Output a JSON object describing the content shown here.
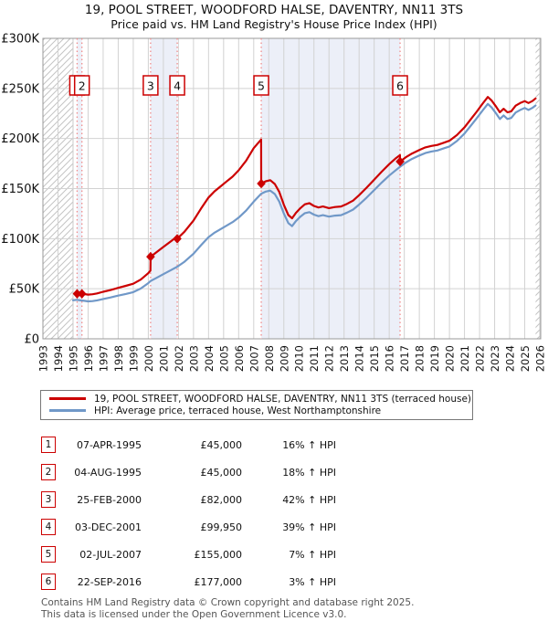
{
  "header": {
    "title": "19, POOL STREET, WOODFORD HALSE, DAVENTRY, NN11 3TS",
    "subtitle": "Price paid vs. HM Land Registry's House Price Index (HPI)"
  },
  "chart_data": {
    "type": "line",
    "x_axis": {
      "min": 1993,
      "max": 2026.06,
      "ticks": [
        1993,
        1994,
        1995,
        1996,
        1997,
        1998,
        1999,
        2000,
        2001,
        2002,
        2003,
        2004,
        2005,
        2006,
        2007,
        2008,
        2009,
        2010,
        2011,
        2012,
        2013,
        2014,
        2015,
        2016,
        2017,
        2018,
        2019,
        2020,
        2021,
        2022,
        2023,
        2024,
        2025,
        2026
      ]
    },
    "y_axis": {
      "min": 0,
      "max": 300,
      "ticks": [
        {
          "v": 0,
          "label": "£0"
        },
        {
          "v": 50,
          "label": "£50K"
        },
        {
          "v": 100,
          "label": "£100K"
        },
        {
          "v": 150,
          "label": "£150K"
        },
        {
          "v": 200,
          "label": "£200K"
        },
        {
          "v": 250,
          "label": "£250K"
        },
        {
          "v": 300,
          "label": "£300K"
        }
      ]
    },
    "series": [
      {
        "name": "HPI: Average price, terraced house, West Northamptonshire",
        "color": "#7098c8",
        "points": [
          [
            1995.0,
            38.5
          ],
          [
            1995.25,
            38.9
          ],
          [
            1995.5,
            38.4
          ],
          [
            1995.75,
            37.9
          ],
          [
            1996.0,
            37.4
          ],
          [
            1996.3,
            37.7
          ],
          [
            1996.6,
            38.4
          ],
          [
            1997.0,
            39.8
          ],
          [
            1997.5,
            41.3
          ],
          [
            1998.0,
            43.1
          ],
          [
            1998.5,
            44.8
          ],
          [
            1999.0,
            46.6
          ],
          [
            1999.5,
            50.2
          ],
          [
            2000.0,
            55.6
          ],
          [
            2000.15,
            57.7
          ],
          [
            2000.5,
            60.5
          ],
          [
            2001.0,
            64.6
          ],
          [
            2001.5,
            68.6
          ],
          [
            2001.92,
            71.9
          ],
          [
            2002.4,
            77.0
          ],
          [
            2003.0,
            85.0
          ],
          [
            2003.5,
            93.5
          ],
          [
            2004.0,
            101.5
          ],
          [
            2004.4,
            106.0
          ],
          [
            2004.8,
            109.5
          ],
          [
            2005.2,
            113.0
          ],
          [
            2005.6,
            116.5
          ],
          [
            2006.0,
            121.0
          ],
          [
            2006.5,
            128.0
          ],
          [
            2007.0,
            137.0
          ],
          [
            2007.5,
            144.9
          ],
          [
            2007.8,
            147.0
          ],
          [
            2008.1,
            148.0
          ],
          [
            2008.4,
            144.5
          ],
          [
            2008.7,
            137.0
          ],
          [
            2009.0,
            125.0
          ],
          [
            2009.3,
            115.5
          ],
          [
            2009.55,
            112.5
          ],
          [
            2009.8,
            117.5
          ],
          [
            2010.1,
            122.0
          ],
          [
            2010.4,
            125.5
          ],
          [
            2010.7,
            126.5
          ],
          [
            2011.0,
            124.0
          ],
          [
            2011.3,
            122.5
          ],
          [
            2011.6,
            123.5
          ],
          [
            2012.0,
            122.0
          ],
          [
            2012.4,
            123.0
          ],
          [
            2012.8,
            123.5
          ],
          [
            2013.2,
            126.0
          ],
          [
            2013.6,
            129.0
          ],
          [
            2014.0,
            134.0
          ],
          [
            2014.5,
            141.0
          ],
          [
            2015.0,
            148.5
          ],
          [
            2015.5,
            156.0
          ],
          [
            2016.0,
            163.0
          ],
          [
            2016.4,
            168.0
          ],
          [
            2016.72,
            171.8
          ],
          [
            2017.1,
            176.0
          ],
          [
            2017.5,
            179.5
          ],
          [
            2018.0,
            183.0
          ],
          [
            2018.4,
            185.5
          ],
          [
            2018.8,
            187.0
          ],
          [
            2019.2,
            188.0
          ],
          [
            2019.6,
            190.0
          ],
          [
            2020.0,
            192.0
          ],
          [
            2020.5,
            197.5
          ],
          [
            2021.0,
            205.0
          ],
          [
            2021.4,
            212.5
          ],
          [
            2021.8,
            220.0
          ],
          [
            2022.2,
            228.0
          ],
          [
            2022.55,
            234.5
          ],
          [
            2022.8,
            231.0
          ],
          [
            2023.1,
            225.0
          ],
          [
            2023.35,
            219.5
          ],
          [
            2023.6,
            223.0
          ],
          [
            2023.85,
            219.5
          ],
          [
            2024.1,
            220.5
          ],
          [
            2024.4,
            226.0
          ],
          [
            2024.7,
            228.5
          ],
          [
            2025.0,
            230.5
          ],
          [
            2025.25,
            228.5
          ],
          [
            2025.5,
            230.5
          ],
          [
            2025.72,
            233.0
          ]
        ]
      },
      {
        "name": "19, POOL STREET, WOODFORD HALSE, DAVENTRY, NN11 3TS (terraced house)",
        "color": "#cc0000",
        "points": [
          [
            1995.27,
            45
          ],
          [
            1995.45,
            45.4
          ],
          [
            1995.59,
            45
          ],
          [
            1995.75,
            44.7
          ],
          [
            1996.0,
            44.1
          ],
          [
            1996.3,
            44.5
          ],
          [
            1996.6,
            45.3
          ],
          [
            1997.0,
            47.0
          ],
          [
            1997.5,
            48.7
          ],
          [
            1998.0,
            50.9
          ],
          [
            1998.5,
            52.9
          ],
          [
            1999.0,
            55.0
          ],
          [
            1999.5,
            59.2
          ],
          [
            2000.0,
            65.6
          ],
          [
            2000.14,
            68.1
          ],
          [
            2000.15,
            82.0
          ],
          [
            2000.5,
            85.9
          ],
          [
            2001.0,
            91.7
          ],
          [
            2001.5,
            97.4
          ],
          [
            2001.91,
            102.1
          ],
          [
            2001.92,
            99.95
          ],
          [
            2002.4,
            107.0
          ],
          [
            2003.0,
            118.2
          ],
          [
            2003.5,
            130.0
          ],
          [
            2004.0,
            141.1
          ],
          [
            2004.4,
            147.3
          ],
          [
            2004.8,
            152.2
          ],
          [
            2005.2,
            157.1
          ],
          [
            2005.6,
            161.9
          ],
          [
            2006.0,
            168.2
          ],
          [
            2006.5,
            177.9
          ],
          [
            2007.0,
            190.4
          ],
          [
            2007.49,
            199.0
          ],
          [
            2007.5,
            155.0
          ],
          [
            2007.8,
            157.3
          ],
          [
            2008.1,
            158.4
          ],
          [
            2008.4,
            154.6
          ],
          [
            2008.7,
            146.6
          ],
          [
            2009.0,
            133.8
          ],
          [
            2009.3,
            123.6
          ],
          [
            2009.55,
            120.4
          ],
          [
            2009.8,
            125.7
          ],
          [
            2010.1,
            130.5
          ],
          [
            2010.4,
            134.3
          ],
          [
            2010.7,
            135.4
          ],
          [
            2011.0,
            132.7
          ],
          [
            2011.3,
            131.1
          ],
          [
            2011.6,
            132.1
          ],
          [
            2012.0,
            130.5
          ],
          [
            2012.4,
            131.6
          ],
          [
            2012.8,
            132.1
          ],
          [
            2013.2,
            134.8
          ],
          [
            2013.6,
            138.0
          ],
          [
            2014.0,
            143.4
          ],
          [
            2014.5,
            150.9
          ],
          [
            2015.0,
            158.9
          ],
          [
            2015.5,
            166.9
          ],
          [
            2016.0,
            174.4
          ],
          [
            2016.4,
            179.8
          ],
          [
            2016.71,
            183.4
          ],
          [
            2016.72,
            177.0
          ],
          [
            2017.1,
            181.3
          ],
          [
            2017.5,
            184.9
          ],
          [
            2018.0,
            188.5
          ],
          [
            2018.4,
            191.1
          ],
          [
            2018.8,
            192.6
          ],
          [
            2019.2,
            193.6
          ],
          [
            2019.6,
            195.7
          ],
          [
            2020.0,
            197.8
          ],
          [
            2020.5,
            203.4
          ],
          [
            2021.0,
            211.2
          ],
          [
            2021.4,
            218.9
          ],
          [
            2021.8,
            226.6
          ],
          [
            2022.2,
            234.8
          ],
          [
            2022.55,
            241.5
          ],
          [
            2022.8,
            237.9
          ],
          [
            2023.1,
            231.8
          ],
          [
            2023.35,
            226.1
          ],
          [
            2023.6,
            229.7
          ],
          [
            2023.85,
            226.1
          ],
          [
            2024.1,
            227.1
          ],
          [
            2024.4,
            232.8
          ],
          [
            2024.7,
            235.4
          ],
          [
            2025.0,
            237.4
          ],
          [
            2025.25,
            235.4
          ],
          [
            2025.5,
            237.4
          ],
          [
            2025.72,
            240.0
          ]
        ]
      }
    ],
    "sales": [
      {
        "n": "1",
        "year": 1995.27,
        "value": 45
      },
      {
        "n": "2",
        "year": 1995.59,
        "value": 45
      },
      {
        "n": "3",
        "year": 2000.15,
        "value": 82
      },
      {
        "n": "4",
        "year": 2001.92,
        "value": 99.95
      },
      {
        "n": "5",
        "year": 2007.5,
        "value": 155
      },
      {
        "n": "6",
        "year": 2016.72,
        "value": 177
      }
    ],
    "owned_bands": [
      [
        1995.27,
        1995.59
      ],
      [
        2000.15,
        2001.92
      ],
      [
        2007.5,
        2016.72
      ]
    ],
    "no_data_bands": [
      [
        1993,
        1995.0
      ],
      [
        2025.72,
        2026.06
      ]
    ],
    "colors": {
      "band": "#eceff8",
      "sale_line": "#f08c8c",
      "grid": "#d2d2d2",
      "border": "#999999",
      "hatch": "#c4c4c4",
      "marker_box_border": "#cc0000"
    }
  },
  "legend": {
    "items": [
      {
        "label": "19, POOL STREET, WOODFORD HALSE, DAVENTRY, NN11 3TS (terraced house)",
        "color": "#cc0000"
      },
      {
        "label": "HPI: Average price, terraced house, West Northamptonshire",
        "color": "#7098c8"
      }
    ]
  },
  "sales_table": {
    "rows": [
      {
        "num": "1",
        "date": "07-APR-1995",
        "price": "£45,000",
        "hpi": "16% ↑ HPI"
      },
      {
        "num": "2",
        "date": "04-AUG-1995",
        "price": "£45,000",
        "hpi": "18% ↑ HPI"
      },
      {
        "num": "3",
        "date": "25-FEB-2000",
        "price": "£82,000",
        "hpi": "42% ↑ HPI"
      },
      {
        "num": "4",
        "date": "03-DEC-2001",
        "price": "£99,950",
        "hpi": "39% ↑ HPI"
      },
      {
        "num": "5",
        "date": "02-JUL-2007",
        "price": "£155,000",
        "hpi": "7% ↑ HPI"
      },
      {
        "num": "6",
        "date": "22-SEP-2016",
        "price": "£177,000",
        "hpi": "3% ↑ HPI"
      }
    ]
  },
  "footer": {
    "line1": "Contains HM Land Registry data © Crown copyright and database right 2025.",
    "line2": "This data is licensed under the Open Government Licence v3.0."
  }
}
